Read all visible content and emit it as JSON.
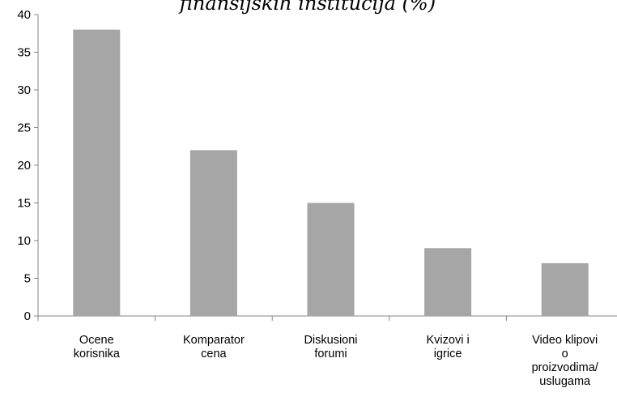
{
  "chart_data": {
    "type": "bar",
    "title": "finansijskih institucija (%)",
    "categories": [
      [
        "Ocene",
        "korisnika"
      ],
      [
        "Komparator",
        "cena"
      ],
      [
        "Diskusioni",
        "forumi"
      ],
      [
        "Kvizovi i",
        "igrice"
      ],
      [
        "Video klipovi",
        "o",
        "proizvodima/",
        "uslugama"
      ]
    ],
    "values": [
      38,
      22,
      15,
      9,
      7
    ],
    "color": "#a6a6a6",
    "ylim": [
      0,
      40
    ],
    "yticks": [
      0,
      5,
      10,
      15,
      20,
      25,
      30,
      35,
      40
    ],
    "grid": false
  }
}
